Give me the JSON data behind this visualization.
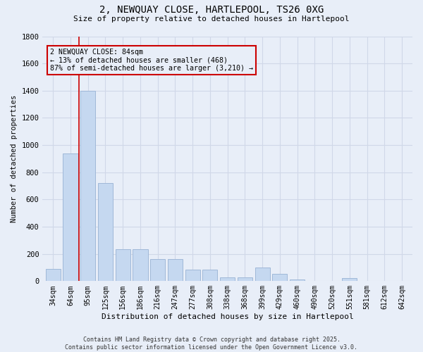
{
  "title_line1": "2, NEWQUAY CLOSE, HARTLEPOOL, TS26 0XG",
  "title_line2": "Size of property relative to detached houses in Hartlepool",
  "xlabel": "Distribution of detached houses by size in Hartlepool",
  "ylabel": "Number of detached properties",
  "categories": [
    "34sqm",
    "64sqm",
    "95sqm",
    "125sqm",
    "156sqm",
    "186sqm",
    "216sqm",
    "247sqm",
    "277sqm",
    "308sqm",
    "338sqm",
    "368sqm",
    "399sqm",
    "429sqm",
    "460sqm",
    "490sqm",
    "520sqm",
    "551sqm",
    "581sqm",
    "612sqm",
    "642sqm"
  ],
  "values": [
    90,
    940,
    1400,
    720,
    235,
    235,
    160,
    160,
    85,
    85,
    30,
    30,
    100,
    55,
    10,
    0,
    0,
    20,
    0,
    0,
    0
  ],
  "bar_color": "#c5d8f0",
  "bar_edgecolor": "#a0b8d8",
  "grid_color": "#d0d8e8",
  "bg_color": "#e8eef8",
  "vline_x": 1.5,
  "vline_color": "#cc0000",
  "annotation_text": "2 NEWQUAY CLOSE: 84sqm\n← 13% of detached houses are smaller (468)\n87% of semi-detached houses are larger (3,210) →",
  "annotation_box_color": "#cc0000",
  "ylim": [
    0,
    1800
  ],
  "yticks": [
    0,
    200,
    400,
    600,
    800,
    1000,
    1200,
    1400,
    1600,
    1800
  ],
  "footer_line1": "Contains HM Land Registry data © Crown copyright and database right 2025.",
  "footer_line2": "Contains public sector information licensed under the Open Government Licence v3.0."
}
